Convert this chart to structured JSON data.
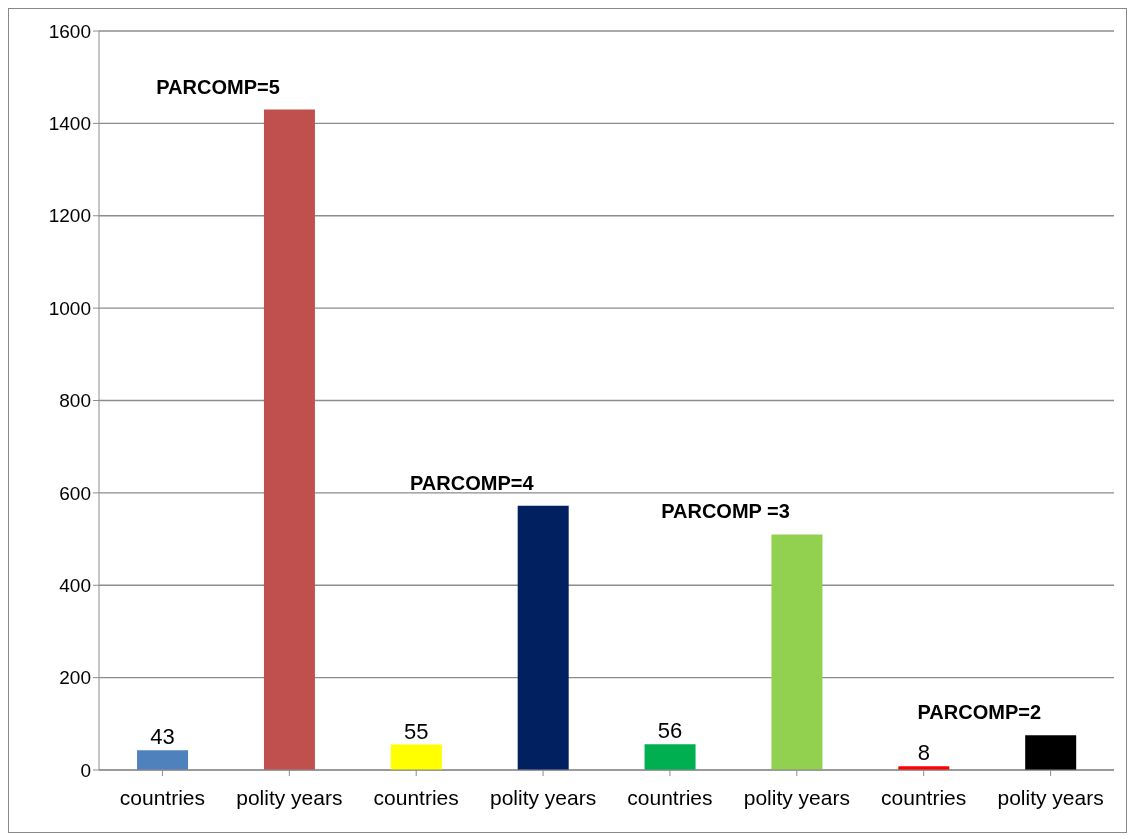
{
  "chart_data": {
    "type": "bar",
    "categories": [
      "countries",
      "polity years",
      "countries",
      "polity years",
      "countries",
      "polity years",
      "countries",
      "polity years"
    ],
    "values": [
      43,
      1430,
      55,
      572,
      56,
      510,
      8,
      75
    ],
    "colors": [
      "#4f81bd",
      "#c0504d",
      "#ffff00",
      "#002060",
      "#00b050",
      "#92d050",
      "#ff0000",
      "#000000"
    ],
    "value_labels": [
      "43",
      null,
      "55",
      null,
      "56",
      null,
      "8",
      null
    ],
    "annotations": [
      "PARCOMP=5",
      "PARCOMP=4",
      "PARCOMP =3",
      "PARCOMP=2"
    ],
    "ylim": [
      0,
      1600
    ],
    "yticks": [
      0,
      200,
      400,
      600,
      800,
      1000,
      1200,
      1400,
      1600
    ],
    "grid": "y"
  }
}
